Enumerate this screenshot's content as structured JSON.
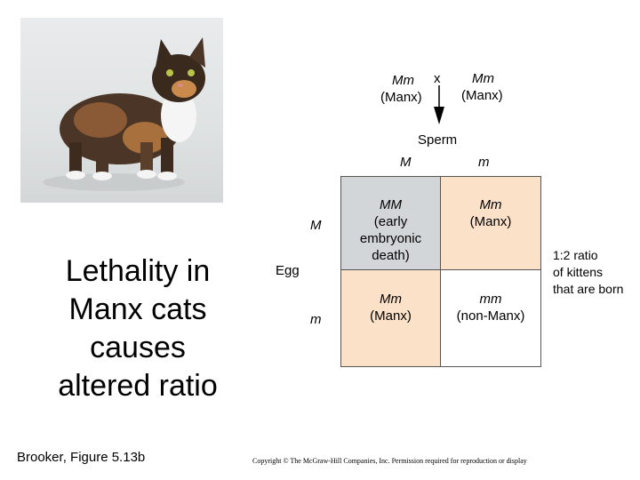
{
  "title": {
    "lines": [
      "Lethality in",
      "Manx cats",
      "causes",
      "altered ratio"
    ]
  },
  "credit": "Brooker, Figure 5.13b",
  "copyright": "Copyright © The McGraw-Hill Companies, Inc. Permission required for reproduction or display",
  "cross": {
    "parent1": {
      "genotype": "Mm",
      "phenotype": "(Manx)"
    },
    "symbol": "x",
    "parent2": {
      "genotype": "Mm",
      "phenotype": "(Manx)"
    }
  },
  "sperm": {
    "label": "Sperm",
    "alleles": [
      "M",
      "m"
    ]
  },
  "egg": {
    "label": "Egg",
    "alleles": [
      "M",
      "m"
    ]
  },
  "punnett": {
    "MM": {
      "genotype": "MM",
      "desc": [
        "(early",
        "embryonic",
        "death)"
      ]
    },
    "Mm_top": {
      "genotype": "Mm",
      "desc": [
        "(Manx)"
      ]
    },
    "Mm_bottom": {
      "genotype": "Mm",
      "desc": [
        "(Manx)"
      ]
    },
    "mm": {
      "genotype": "mm",
      "desc": [
        "(non-Manx)"
      ]
    }
  },
  "ratio_note": [
    "1:2 ratio",
    "of kittens",
    "that are born"
  ],
  "colors": {
    "lethal_cell": "#d3d6d8",
    "manx_cell": "#fbe1c8",
    "nonmanx_cell": "#ffffff"
  }
}
